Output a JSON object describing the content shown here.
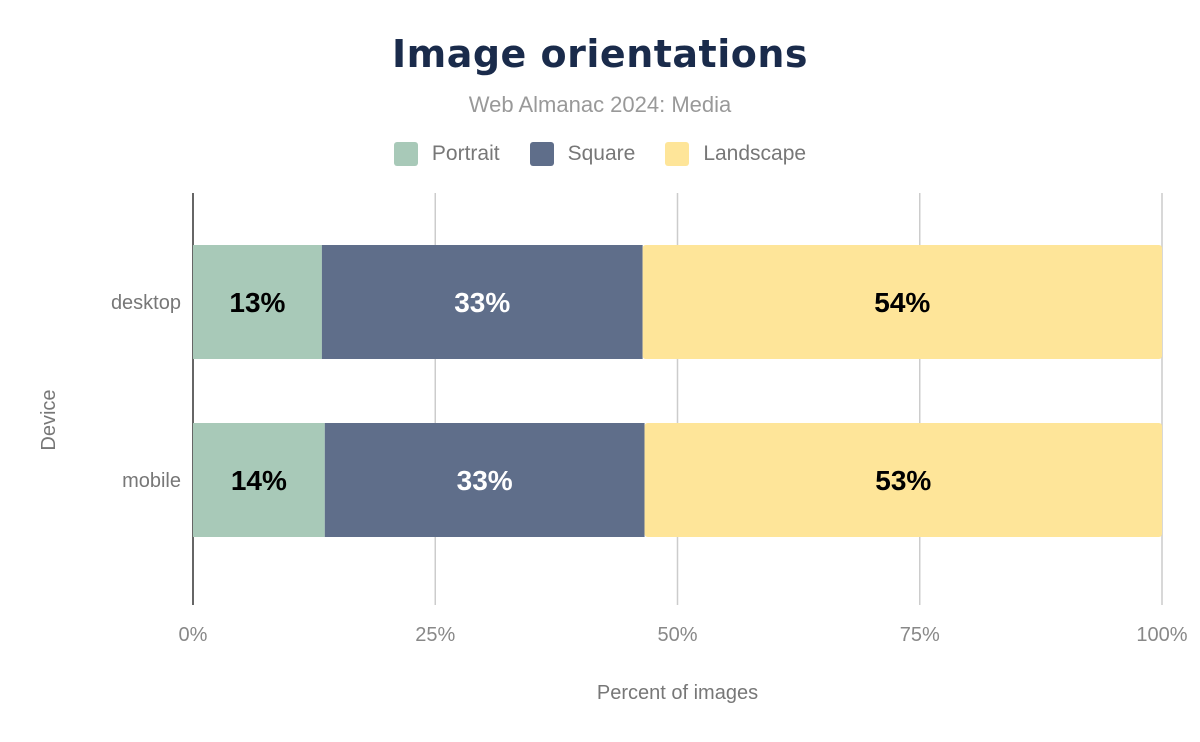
{
  "chart_data": {
    "type": "bar",
    "orientation": "horizontal",
    "stacked": true,
    "title": "Image orientations",
    "subtitle": "Web Almanac 2024: Media",
    "xlabel": "Percent of images",
    "ylabel": "Device",
    "xlim": [
      0,
      100
    ],
    "x_ticks": [
      "0%",
      "25%",
      "50%",
      "75%",
      "100%"
    ],
    "categories": [
      "desktop",
      "mobile"
    ],
    "series": [
      {
        "name": "Portrait",
        "color": "#a8c9b8",
        "label_color": "#000000",
        "values": [
          13.3,
          13.6
        ],
        "labels": [
          "13%",
          "14%"
        ]
      },
      {
        "name": "Square",
        "color": "#5f6e8a",
        "label_color": "#ffffff",
        "values": [
          33.1,
          33.0
        ],
        "labels": [
          "33%",
          "33%"
        ]
      },
      {
        "name": "Landscape",
        "color": "#fee599",
        "label_color": "#000000",
        "values": [
          53.6,
          53.4
        ],
        "labels": [
          "54%",
          "53%"
        ]
      }
    ],
    "grid": true,
    "legend_position": "top"
  }
}
